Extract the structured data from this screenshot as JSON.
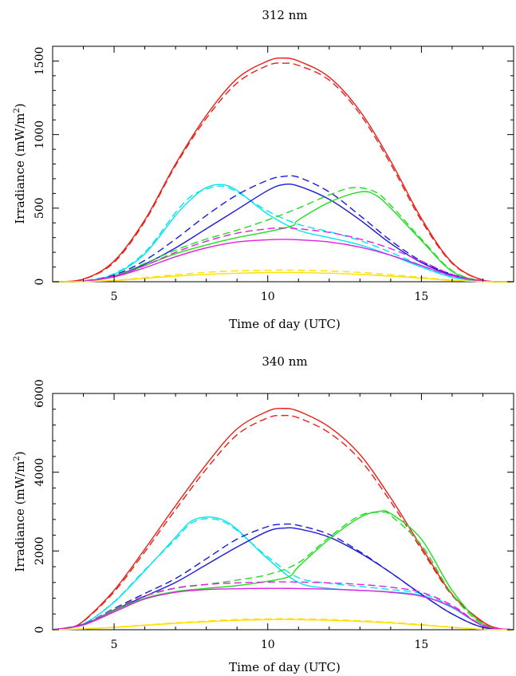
{
  "chart_data": [
    {
      "type": "line",
      "title": "312 nm",
      "xlabel": "Time of day (UTC)",
      "ylabel_main": "Irradiance (mW/m",
      "ylabel_sup": "2",
      "ylabel_close": ")",
      "xlim": [
        3,
        18
      ],
      "ylim": [
        0,
        1600
      ],
      "xticks": [
        5,
        10,
        15
      ],
      "yticks": [
        0,
        500,
        1000,
        1500
      ],
      "series": [
        {
          "color": "#e8201a",
          "style": "solid",
          "x": [
            3,
            4,
            5,
            6,
            7,
            8,
            9,
            10,
            10.5,
            11,
            12,
            13,
            14,
            15,
            16,
            17,
            18
          ],
          "y": [
            0,
            18,
            140,
            420,
            800,
            1130,
            1380,
            1500,
            1520,
            1500,
            1390,
            1160,
            820,
            430,
            130,
            12,
            0
          ]
        },
        {
          "color": "#e8201a",
          "style": "dashed",
          "x": [
            3,
            4,
            5,
            6,
            7,
            8,
            9,
            10,
            10.5,
            11,
            12,
            13,
            14,
            15,
            16,
            17,
            18
          ],
          "y": [
            0,
            17,
            132,
            410,
            790,
            1110,
            1350,
            1470,
            1485,
            1470,
            1370,
            1140,
            800,
            415,
            125,
            11,
            0
          ]
        },
        {
          "color": "#00e5ee",
          "style": "solid",
          "x": [
            3,
            4,
            5,
            6,
            7,
            7.5,
            8,
            8.5,
            9,
            10,
            11,
            12,
            13,
            14,
            15,
            16,
            17,
            18
          ],
          "y": [
            0,
            5,
            50,
            190,
            450,
            560,
            640,
            660,
            620,
            460,
            350,
            300,
            250,
            180,
            100,
            30,
            3,
            0
          ]
        },
        {
          "color": "#00e5ee",
          "style": "dashed",
          "x": [
            3,
            4,
            5,
            6,
            7,
            7.5,
            8,
            8.5,
            9,
            10,
            11,
            12,
            13,
            14,
            15,
            16,
            17,
            18
          ],
          "y": [
            0,
            5,
            55,
            200,
            470,
            580,
            630,
            650,
            610,
            480,
            390,
            340,
            280,
            200,
            110,
            35,
            3,
            0
          ]
        },
        {
          "color": "#1a1ad8",
          "style": "solid",
          "x": [
            3,
            4,
            5,
            6,
            7,
            8,
            9,
            10,
            10.5,
            11,
            12,
            13,
            14,
            15,
            16,
            17,
            18
          ],
          "y": [
            0,
            4,
            38,
            120,
            230,
            360,
            490,
            620,
            660,
            650,
            560,
            420,
            260,
            130,
            45,
            5,
            0
          ]
        },
        {
          "color": "#1a1ad8",
          "style": "dashed",
          "x": [
            3,
            4,
            5,
            6,
            7,
            8,
            9,
            10,
            10.5,
            11,
            12,
            13,
            14,
            15,
            16,
            17,
            18
          ],
          "y": [
            0,
            5,
            45,
            145,
            290,
            450,
            590,
            690,
            715,
            710,
            610,
            450,
            280,
            140,
            50,
            6,
            0
          ]
        },
        {
          "color": "#22dd22",
          "style": "solid",
          "x": [
            3,
            4,
            5,
            6,
            7,
            8,
            9,
            10,
            10.8,
            11,
            12,
            13,
            13.5,
            14,
            15,
            16,
            17,
            18
          ],
          "y": [
            0,
            4,
            35,
            110,
            190,
            250,
            300,
            340,
            380,
            420,
            540,
            610,
            590,
            500,
            280,
            70,
            5,
            0
          ]
        },
        {
          "color": "#22dd22",
          "style": "dashed",
          "x": [
            3,
            4,
            5,
            6,
            7,
            8,
            9,
            10,
            11,
            12,
            12.8,
            13.5,
            14,
            15,
            16,
            17,
            18
          ],
          "y": [
            0,
            4,
            40,
            125,
            215,
            290,
            350,
            420,
            500,
            590,
            640,
            610,
            520,
            290,
            75,
            6,
            0
          ]
        },
        {
          "color": "#e020e0",
          "style": "solid",
          "x": [
            3,
            4,
            5,
            6,
            7,
            8,
            9,
            10,
            10.5,
            11,
            12,
            13,
            14,
            15,
            16,
            17,
            18
          ],
          "y": [
            0,
            4,
            33,
            95,
            170,
            230,
            270,
            285,
            288,
            285,
            270,
            235,
            180,
            110,
            40,
            5,
            0
          ]
        },
        {
          "color": "#e020e0",
          "style": "dashed",
          "x": [
            3,
            4,
            5,
            6,
            7,
            8,
            9,
            10,
            10.5,
            11,
            12,
            13,
            14,
            15,
            16,
            17,
            18
          ],
          "y": [
            0,
            4,
            38,
            110,
            200,
            275,
            330,
            360,
            365,
            360,
            335,
            290,
            225,
            140,
            50,
            6,
            0
          ]
        },
        {
          "color": "#ffe000",
          "style": "solid",
          "x": [
            3,
            4,
            5,
            6,
            7,
            8,
            9,
            10,
            10.5,
            11,
            12,
            13,
            14,
            15,
            16,
            17,
            18
          ],
          "y": [
            0,
            1,
            8,
            22,
            38,
            50,
            58,
            62,
            63,
            62,
            58,
            50,
            38,
            24,
            9,
            1,
            0
          ]
        },
        {
          "color": "#ffe000",
          "style": "dashed",
          "x": [
            3,
            4,
            5,
            6,
            7,
            8,
            9,
            10,
            10.5,
            11,
            12,
            13,
            14,
            15,
            16,
            17,
            18
          ],
          "y": [
            0,
            1,
            10,
            28,
            48,
            64,
            74,
            78,
            79,
            78,
            73,
            63,
            48,
            30,
            11,
            1,
            0
          ]
        }
      ]
    },
    {
      "type": "line",
      "title": "340 nm",
      "xlabel": "Time of day (UTC)",
      "ylabel_main": "Irradiance (mW/m",
      "ylabel_sup": "2",
      "ylabel_close": ")",
      "xlim": [
        3,
        18
      ],
      "ylim": [
        0,
        6000
      ],
      "xticks": [
        5,
        10,
        15
      ],
      "yticks": [
        0,
        2000,
        4000,
        6000
      ],
      "series": [
        {
          "color": "#e8201a",
          "style": "solid",
          "x": [
            3,
            3.5,
            4,
            5,
            6,
            7,
            8,
            9,
            10,
            10.5,
            11,
            12,
            13,
            14,
            15,
            16,
            17,
            17.6,
            18
          ],
          "y": [
            0,
            40,
            220,
            1000,
            2050,
            3150,
            4200,
            5100,
            5550,
            5620,
            5550,
            5150,
            4450,
            3350,
            2100,
            900,
            200,
            20,
            0
          ]
        },
        {
          "color": "#e8201a",
          "style": "dashed",
          "x": [
            3,
            3.5,
            4,
            5,
            6,
            7,
            8,
            9,
            10,
            10.5,
            11,
            12,
            13,
            14,
            15,
            16,
            17,
            17.6,
            18
          ],
          "y": [
            0,
            38,
            210,
            960,
            1980,
            3050,
            4080,
            4950,
            5380,
            5440,
            5380,
            5000,
            4320,
            3250,
            2040,
            870,
            190,
            18,
            0
          ]
        },
        {
          "color": "#00e5ee",
          "style": "solid",
          "x": [
            3,
            4,
            5,
            6,
            7,
            7.5,
            8,
            8.5,
            9,
            10,
            11,
            12,
            13,
            14,
            15,
            16,
            17,
            18
          ],
          "y": [
            0,
            150,
            700,
            1500,
            2350,
            2750,
            2860,
            2800,
            2550,
            1800,
            1200,
            1050,
            1000,
            960,
            870,
            560,
            100,
            0
          ]
        },
        {
          "color": "#00e5ee",
          "style": "dashed",
          "x": [
            3,
            4,
            5,
            6,
            7,
            7.5,
            8,
            8.5,
            9,
            10,
            11,
            12,
            13,
            14,
            15,
            16,
            17,
            18
          ],
          "y": [
            0,
            150,
            710,
            1520,
            2300,
            2700,
            2820,
            2760,
            2520,
            1850,
            1320,
            1180,
            1100,
            1020,
            920,
            590,
            110,
            0
          ]
        },
        {
          "color": "#1a1ad8",
          "style": "solid",
          "x": [
            3,
            4,
            5,
            6,
            7,
            8,
            9,
            10,
            10.5,
            11,
            12,
            13,
            14,
            15,
            16,
            17,
            18
          ],
          "y": [
            0,
            130,
            500,
            850,
            1200,
            1650,
            2100,
            2500,
            2580,
            2560,
            2350,
            1950,
            1450,
            900,
            400,
            60,
            0
          ]
        },
        {
          "color": "#1a1ad8",
          "style": "dashed",
          "x": [
            3,
            4,
            5,
            6,
            7,
            8,
            9,
            10,
            10.5,
            11,
            12,
            13,
            14,
            15,
            16,
            17,
            18
          ],
          "y": [
            0,
            140,
            540,
            920,
            1300,
            1800,
            2300,
            2620,
            2680,
            2650,
            2420,
            1980,
            1450,
            900,
            400,
            60,
            0
          ]
        },
        {
          "color": "#22dd22",
          "style": "solid",
          "x": [
            3,
            4,
            5,
            6,
            7,
            8,
            9,
            10,
            10.7,
            11,
            12,
            13,
            13.6,
            14,
            15,
            16,
            17,
            18
          ],
          "y": [
            0,
            120,
            480,
            800,
            970,
            1050,
            1120,
            1230,
            1350,
            1600,
            2300,
            2850,
            3000,
            2950,
            2300,
            1000,
            150,
            0
          ]
        },
        {
          "color": "#22dd22",
          "style": "dashed",
          "x": [
            3,
            4,
            5,
            6,
            7,
            8,
            9,
            10,
            11,
            12,
            13,
            13.7,
            14,
            15,
            16,
            17,
            18
          ],
          "y": [
            0,
            130,
            520,
            850,
            1050,
            1150,
            1260,
            1400,
            1700,
            2350,
            2900,
            2980,
            2900,
            2150,
            900,
            130,
            0
          ]
        },
        {
          "color": "#e020e0",
          "style": "solid",
          "x": [
            3,
            4,
            5,
            6,
            7,
            8,
            9,
            10,
            10.5,
            11,
            12,
            13,
            14,
            15,
            16,
            17,
            18
          ],
          "y": [
            0,
            120,
            450,
            780,
            950,
            1020,
            1040,
            1050,
            1050,
            1045,
            1030,
            1000,
            950,
            850,
            580,
            100,
            0
          ]
        },
        {
          "color": "#e020e0",
          "style": "dashed",
          "x": [
            3,
            4,
            5,
            6,
            7,
            8,
            9,
            10,
            10.5,
            11,
            12,
            13,
            14,
            15,
            16,
            17,
            18
          ],
          "y": [
            0,
            130,
            500,
            860,
            1060,
            1150,
            1190,
            1210,
            1215,
            1210,
            1190,
            1150,
            1080,
            950,
            620,
            110,
            0
          ]
        },
        {
          "color": "#ffe000",
          "style": "solid",
          "x": [
            3,
            4,
            5,
            6,
            7,
            8,
            9,
            10,
            10.5,
            11,
            12,
            13,
            14,
            15,
            16,
            17,
            18
          ],
          "y": [
            0,
            20,
            60,
            110,
            160,
            200,
            240,
            255,
            260,
            255,
            240,
            210,
            170,
            120,
            60,
            10,
            0
          ]
        },
        {
          "color": "#ffe000",
          "style": "dashed",
          "x": [
            3,
            4,
            5,
            6,
            7,
            8,
            9,
            10,
            10.5,
            11,
            12,
            13,
            14,
            15,
            16,
            17,
            18
          ],
          "y": [
            0,
            22,
            65,
            120,
            175,
            220,
            260,
            275,
            280,
            275,
            260,
            230,
            185,
            130,
            65,
            11,
            0
          ]
        }
      ]
    }
  ]
}
